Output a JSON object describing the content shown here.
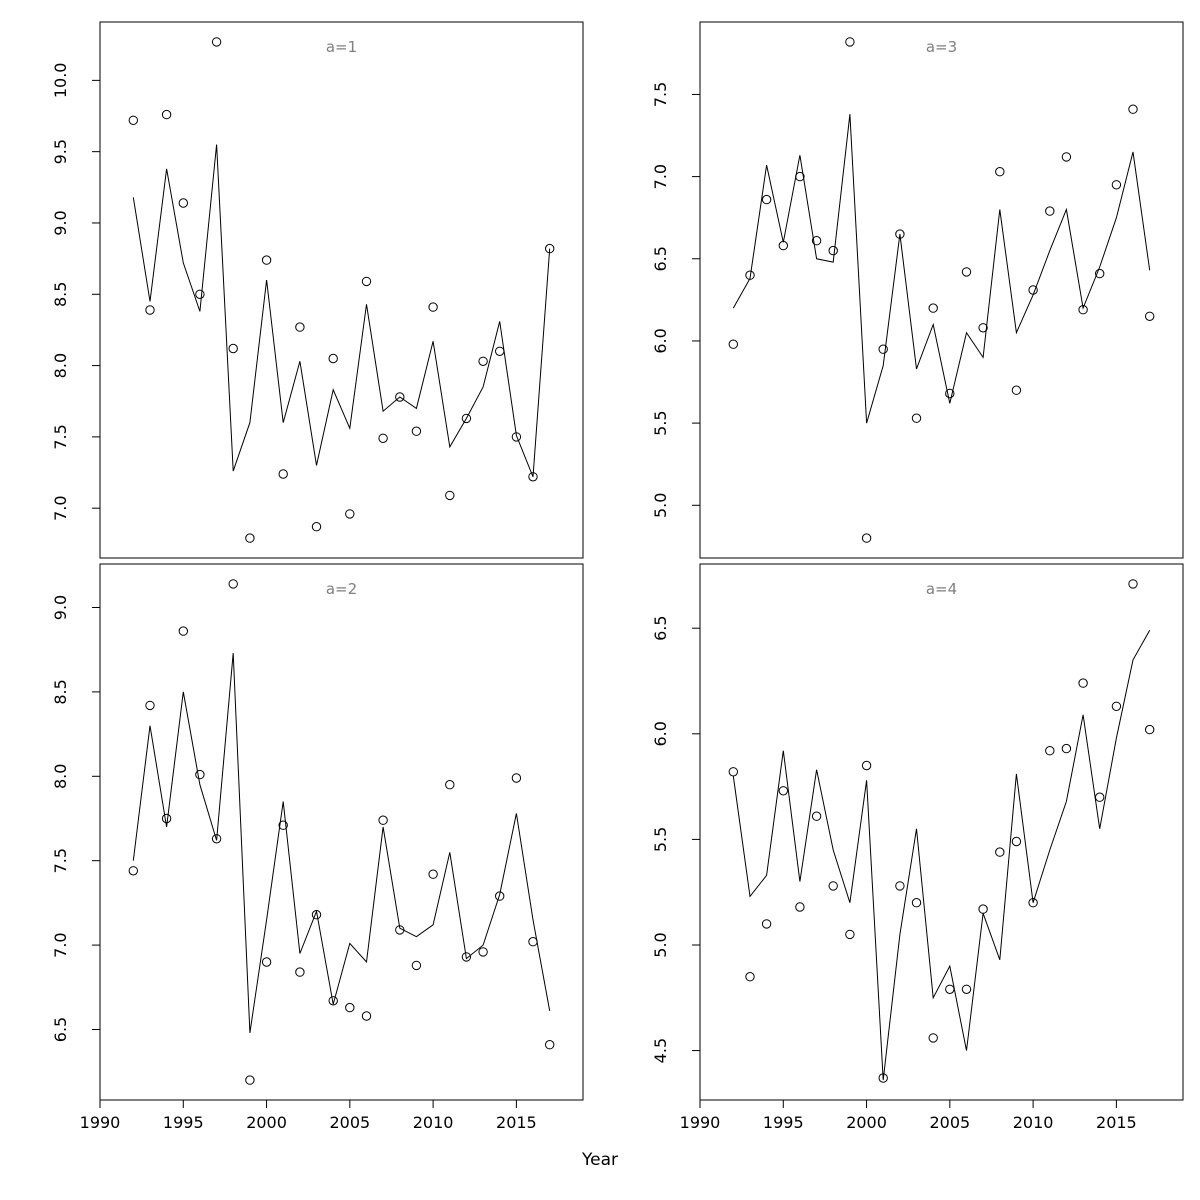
{
  "figure": {
    "background": "#ffffff",
    "xlabel": "Year"
  },
  "chart_data": {
    "type": "line+scatter",
    "layout": "2x2 panels (a=1 top-left, a=3 top-right, a=2 bottom-left, a=4 bottom-right)",
    "xlabel": "Year",
    "marker": "open-circle",
    "line_color": "#000000",
    "point_color": "#000000",
    "title_color": "#7f7f7f",
    "xlim": [
      1990,
      2019
    ],
    "x_ticks": [
      1990,
      1995,
      2000,
      2005,
      2010,
      2015
    ],
    "x_tick_labels": [
      "1990",
      "1995",
      "2000",
      "2005",
      "2010",
      "2015"
    ],
    "years": [
      1992,
      1993,
      1994,
      1995,
      1996,
      1997,
      1998,
      1999,
      2000,
      2001,
      2002,
      2003,
      2004,
      2005,
      2006,
      2007,
      2008,
      2009,
      2010,
      2011,
      2012,
      2013,
      2014,
      2015,
      2016,
      2017
    ],
    "panels": [
      {
        "title": "a=1",
        "position": "top-left",
        "y_ticks": [
          7.0,
          7.5,
          8.0,
          8.5,
          9.0,
          9.5,
          10.0
        ],
        "y_tick_labels": [
          "7.0",
          "7.5",
          "8.0",
          "8.5",
          "9.0",
          "9.5",
          "10.0"
        ],
        "points": [
          9.72,
          8.39,
          9.76,
          9.14,
          8.5,
          10.27,
          8.12,
          6.79,
          8.74,
          7.24,
          8.27,
          6.87,
          8.05,
          6.96,
          8.59,
          7.49,
          7.78,
          7.54,
          8.41,
          7.09,
          7.63,
          8.03,
          8.1,
          7.5,
          7.22,
          8.82
        ],
        "line": [
          9.18,
          8.45,
          9.38,
          8.72,
          8.38,
          9.55,
          7.26,
          7.6,
          8.6,
          7.6,
          8.03,
          7.3,
          7.83,
          7.56,
          8.43,
          7.68,
          7.78,
          7.7,
          8.17,
          7.43,
          7.63,
          7.85,
          8.31,
          7.51,
          7.22,
          8.82
        ]
      },
      {
        "title": "a=3",
        "position": "top-right",
        "y_ticks": [
          5.0,
          5.5,
          6.0,
          6.5,
          7.0,
          7.5
        ],
        "y_tick_labels": [
          "5.0",
          "5.5",
          "6.0",
          "6.5",
          "7.0",
          "7.5"
        ],
        "points": [
          5.98,
          6.4,
          6.86,
          6.58,
          7.0,
          6.61,
          6.55,
          7.82,
          4.8,
          5.95,
          6.65,
          5.53,
          6.2,
          5.68,
          6.42,
          6.08,
          7.03,
          5.7,
          6.31,
          6.79,
          7.12,
          6.19,
          6.41,
          6.95,
          7.41,
          6.15
        ],
        "line": [
          6.2,
          6.38,
          7.07,
          6.6,
          7.13,
          6.5,
          6.48,
          7.38,
          5.5,
          5.85,
          6.65,
          5.83,
          6.1,
          5.62,
          6.05,
          5.9,
          6.8,
          6.05,
          6.28,
          6.55,
          6.8,
          6.2,
          6.45,
          6.75,
          7.15,
          6.43
        ]
      },
      {
        "title": "a=2",
        "position": "bottom-left",
        "y_ticks": [
          6.5,
          7.0,
          7.5,
          8.0,
          8.5,
          9.0
        ],
        "y_tick_labels": [
          "6.5",
          "7.0",
          "7.5",
          "8.0",
          "8.5",
          "9.0"
        ],
        "points": [
          7.44,
          8.42,
          7.75,
          8.86,
          8.01,
          7.63,
          9.14,
          6.2,
          6.9,
          7.71,
          6.84,
          7.18,
          6.67,
          6.63,
          6.58,
          7.74,
          7.09,
          6.88,
          7.42,
          7.95,
          6.93,
          6.96,
          7.29,
          7.99,
          7.02,
          6.41
        ],
        "line": [
          7.5,
          8.3,
          7.7,
          8.5,
          7.95,
          7.62,
          8.73,
          6.48,
          7.15,
          7.85,
          6.95,
          7.2,
          6.65,
          7.01,
          6.9,
          7.7,
          7.1,
          7.05,
          7.12,
          7.55,
          6.92,
          7.0,
          7.3,
          7.78,
          7.15,
          6.61
        ]
      },
      {
        "title": "a=4",
        "position": "bottom-right",
        "y_ticks": [
          4.5,
          5.0,
          5.5,
          6.0,
          6.5
        ],
        "y_tick_labels": [
          "4.5",
          "5.0",
          "5.5",
          "6.0",
          "6.5"
        ],
        "points": [
          5.82,
          4.85,
          5.1,
          5.73,
          5.18,
          5.61,
          5.28,
          5.05,
          5.85,
          4.37,
          5.28,
          5.2,
          4.56,
          4.79,
          4.79,
          5.17,
          5.44,
          5.49,
          5.2,
          5.92,
          5.93,
          6.24,
          5.7,
          6.13,
          6.71,
          6.02
        ],
        "line": [
          5.8,
          5.23,
          5.33,
          5.92,
          5.3,
          5.83,
          5.45,
          5.2,
          5.78,
          4.36,
          5.05,
          5.55,
          4.75,
          4.9,
          4.5,
          5.15,
          4.93,
          5.81,
          5.2,
          5.45,
          5.68,
          6.09,
          5.55,
          5.98,
          6.35,
          6.49
        ]
      }
    ]
  }
}
